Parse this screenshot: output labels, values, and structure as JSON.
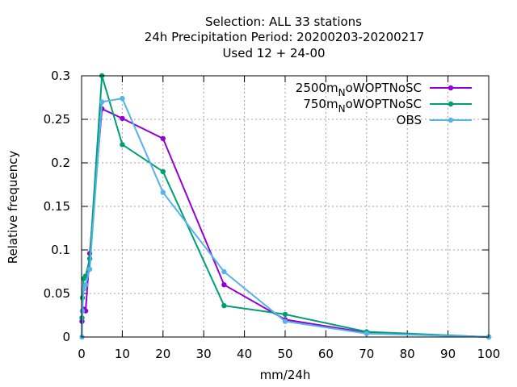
{
  "chart_data": {
    "type": "line",
    "title_lines": [
      "Selection: ALL      33 stations",
      "24h Precipitation  Period: 20200203-20200217",
      "Used  12 + 24-00"
    ],
    "xlabel": "mm/24h",
    "ylabel": "Relative frequency",
    "xlim": [
      0,
      100
    ],
    "ylim": [
      0,
      0.3
    ],
    "xticks": [
      0,
      10,
      20,
      30,
      40,
      50,
      60,
      70,
      80,
      90,
      100
    ],
    "yticks": [
      0,
      0.05,
      0.1,
      0.15,
      0.2,
      0.25,
      0.3
    ],
    "xtick_labels": [
      "0",
      "10",
      "20",
      "30",
      "40",
      "50",
      "60",
      "70",
      "80",
      "90",
      "100"
    ],
    "ytick_labels": [
      "0",
      "0.05",
      "0.1",
      "0.15",
      "0.2",
      "0.25",
      "0.3"
    ],
    "grid": true,
    "legend_position": "top-right",
    "series": [
      {
        "name": "2500m_NoWOPTNoSC",
        "legend_main": "2500m",
        "legend_sub": "N",
        "legend_rest": "oWOPTNoSC",
        "color": "#9400d3",
        "x": [
          0.1,
          0.2,
          0.5,
          1,
          2,
          5,
          10,
          20,
          35,
          50,
          70,
          100
        ],
        "y": [
          0.018,
          0.03,
          0.032,
          0.03,
          0.096,
          0.262,
          0.251,
          0.228,
          0.06,
          0.02,
          0.005,
          0.0
        ]
      },
      {
        "name": "750m_NoWOPTNoSC",
        "legend_main": "750m",
        "legend_sub": "N",
        "legend_rest": "oWOPTNoSC",
        "color": "#009e73",
        "x": [
          0.1,
          0.2,
          0.5,
          1,
          2,
          5,
          10,
          20,
          35,
          50,
          70,
          100
        ],
        "y": [
          0.022,
          0.045,
          0.067,
          0.07,
          0.09,
          0.3,
          0.221,
          0.19,
          0.036,
          0.026,
          0.006,
          0.0
        ]
      },
      {
        "name": "OBS",
        "legend_main": "OBS",
        "legend_sub": "",
        "legend_rest": "",
        "color": "#56b4e9",
        "x": [
          0.1,
          0.2,
          0.5,
          1,
          2,
          5,
          10,
          20,
          35,
          50,
          70,
          100
        ],
        "y": [
          0.0,
          0.03,
          0.055,
          0.06,
          0.078,
          0.27,
          0.274,
          0.166,
          0.075,
          0.018,
          0.004,
          0.0
        ]
      }
    ]
  }
}
